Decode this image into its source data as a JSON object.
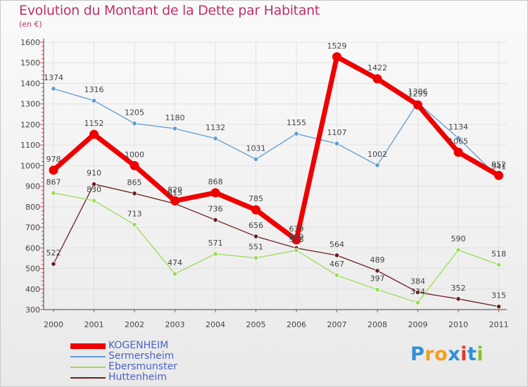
{
  "header": {
    "title": "Evolution du Montant de la Dette par Habitant",
    "subtitle": "(en €)"
  },
  "chart_data": {
    "type": "line",
    "title": "Evolution du Montant de la Dette par Habitant",
    "subtitle": "(en €)",
    "xlabel": "",
    "ylabel": "",
    "x": [
      "2000",
      "2001",
      "2002",
      "2003",
      "2004",
      "2005",
      "2006",
      "2007",
      "2008",
      "2009",
      "2010",
      "2011"
    ],
    "ylim": [
      300,
      1600
    ],
    "yticks": [
      "300",
      "400",
      "500",
      "600",
      "700",
      "800",
      "900",
      "1000",
      "1100",
      "1200",
      "1300",
      "1400",
      "1500",
      "1600"
    ],
    "grid": true,
    "legend_position": "bottom-left",
    "series": [
      {
        "name": "KOGENHEIM",
        "color": "#ee0000",
        "values": [
          978,
          1152,
          1000,
          829,
          868,
          785,
          639,
          1529,
          1422,
          1295,
          1065,
          952
        ]
      },
      {
        "name": "Sermersheim",
        "color": "#5b9bd5",
        "values": [
          1374,
          1316,
          1205,
          1180,
          1132,
          1031,
          1155,
          1107,
          1002,
          1306,
          1134,
          941
        ]
      },
      {
        "name": "Ebersmunster",
        "color": "#99dd55",
        "values": [
          867,
          830,
          713,
          474,
          571,
          551,
          588,
          467,
          397,
          334,
          590,
          518
        ]
      },
      {
        "name": "Huttenheim",
        "color": "#6b1e1e",
        "values": [
          522,
          910,
          865,
          815,
          736,
          656,
          599,
          564,
          489,
          384,
          352,
          315
        ]
      }
    ]
  },
  "logo": {
    "letters": [
      "P",
      "r",
      "o",
      "x",
      "i",
      "t",
      "i"
    ],
    "colors": [
      "#2f8fd8",
      "#f0a020",
      "#f0a020",
      "#2f8fd8",
      "#e03a2a",
      "#2f8fd8",
      "#88c030"
    ]
  }
}
